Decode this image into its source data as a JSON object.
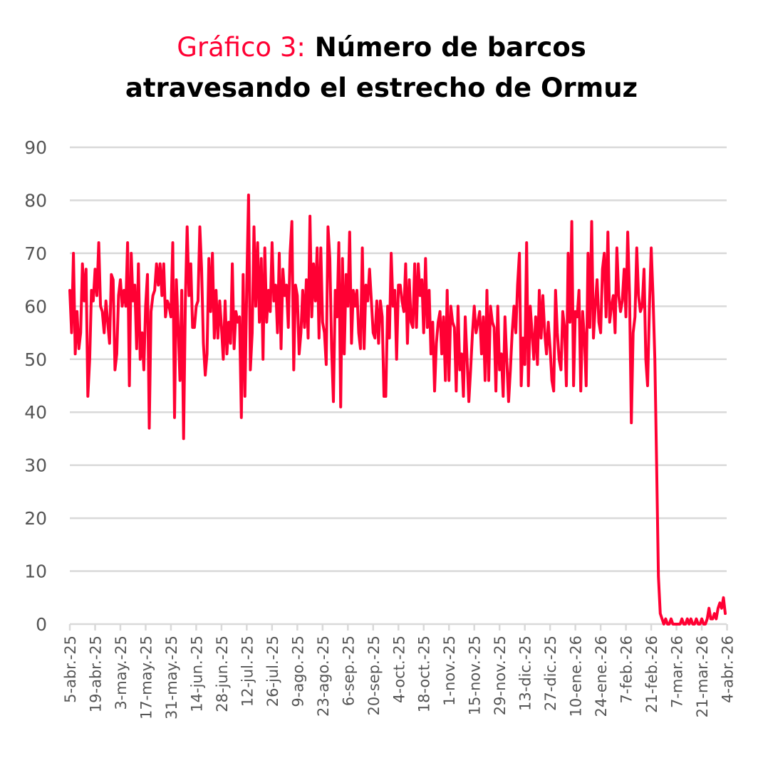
{
  "chart_data": {
    "type": "line",
    "title_prefix": "Gráfico 3:",
    "title_line1": "Número de barcos",
    "title_line2": "atravesando el estrecho de Ormuz",
    "xlabel": "",
    "ylabel": "",
    "ylim": [
      0,
      90
    ],
    "yticks": [
      0,
      10,
      20,
      30,
      40,
      50,
      60,
      70,
      80,
      90
    ],
    "grid": true,
    "line_color": "#ff0033",
    "x_start": "5-abr.-25",
    "x_step_days": 1,
    "tick_every_days": 14,
    "xtick_labels": [
      "5-abr.-25",
      "19-abr.-25",
      "3-may.-25",
      "17-may.-25",
      "31-may.-25",
      "14-jun.-25",
      "28-jun.-25",
      "12-jul.-25",
      "26-jul.-25",
      "9-ago.-25",
      "23-ago.-25",
      "6-sep.-25",
      "20-sep.-25",
      "4-oct.-25",
      "18-oct.-25",
      "1-nov.-25",
      "15-nov.-25",
      "29-nov.-25",
      "13-dic.-25",
      "27-dic.-25",
      "10-ene.-26",
      "24-ene.-26",
      "7-feb.-26",
      "21-feb.-26",
      "7-mar.-26",
      "21-mar.-26",
      "4-abr.-26"
    ],
    "series": [
      {
        "name": "Número de barcos",
        "values": [
          63,
          55,
          70,
          51,
          59,
          52,
          55,
          68,
          61,
          67,
          43,
          50,
          63,
          61,
          67,
          62,
          72,
          60,
          59,
          55,
          61,
          57,
          53,
          66,
          65,
          48,
          51,
          62,
          65,
          60,
          63,
          60,
          72,
          45,
          70,
          61,
          64,
          52,
          68,
          50,
          55,
          48,
          60,
          66,
          37,
          59,
          62,
          63,
          68,
          64,
          68,
          62,
          68,
          58,
          61,
          60,
          58,
          72,
          39,
          65,
          56,
          46,
          63,
          35,
          61,
          75,
          62,
          68,
          56,
          56,
          60,
          61,
          75,
          67,
          53,
          47,
          51,
          69,
          59,
          70,
          54,
          63,
          54,
          61,
          56,
          50,
          61,
          51,
          57,
          53,
          68,
          52,
          59,
          57,
          58,
          39,
          66,
          43,
          64,
          81,
          48,
          55,
          75,
          60,
          72,
          57,
          69,
          50,
          71,
          57,
          63,
          59,
          72,
          61,
          64,
          55,
          70,
          52,
          67,
          62,
          64,
          56,
          70,
          76,
          48,
          64,
          62,
          51,
          55,
          63,
          56,
          65,
          54,
          77,
          58,
          68,
          61,
          71,
          54,
          71,
          57,
          55,
          49,
          75,
          69,
          52,
          42,
          63,
          58,
          72,
          41,
          69,
          51,
          66,
          60,
          74,
          53,
          63,
          60,
          63,
          55,
          52,
          71,
          52,
          64,
          61,
          67,
          61,
          55,
          54,
          61,
          53,
          61,
          58,
          43,
          43,
          60,
          54,
          70,
          60,
          63,
          50,
          64,
          64,
          61,
          59,
          68,
          53,
          65,
          57,
          56,
          68,
          56,
          68,
          62,
          65,
          55,
          69,
          56,
          63,
          51,
          57,
          44,
          53,
          57,
          59,
          51,
          58,
          46,
          63,
          46,
          60,
          57,
          56,
          44,
          60,
          48,
          51,
          43,
          58,
          50,
          42,
          48,
          55,
          60,
          55,
          57,
          59,
          51,
          58,
          46,
          63,
          46,
          60,
          57,
          56,
          44,
          60,
          48,
          51,
          43,
          58,
          50,
          42,
          48,
          55,
          60,
          55,
          64,
          70,
          45,
          54,
          49,
          72,
          45,
          60,
          55,
          50,
          58,
          49,
          63,
          54,
          62,
          55,
          51,
          57,
          52,
          46,
          44,
          63,
          55,
          50,
          48,
          59,
          56,
          45,
          70,
          57,
          76,
          45,
          59,
          58,
          63,
          44,
          59,
          54,
          45,
          70,
          56,
          76,
          54,
          60,
          65,
          57,
          55,
          67,
          70,
          58,
          74,
          57,
          60,
          62,
          55,
          71,
          62,
          59,
          61,
          67,
          58,
          74,
          62,
          38,
          55,
          58,
          71,
          62,
          59,
          60,
          67,
          50,
          45,
          60,
          71,
          62,
          50,
          30,
          9,
          2,
          1,
          0,
          1,
          0,
          0,
          1,
          0,
          0,
          0,
          0,
          0,
          1,
          0,
          0,
          1,
          0,
          1,
          0,
          0,
          1,
          0,
          0,
          1,
          0,
          0,
          1,
          3,
          1,
          1,
          2,
          1,
          3,
          4,
          3,
          5,
          2
        ]
      }
    ]
  }
}
